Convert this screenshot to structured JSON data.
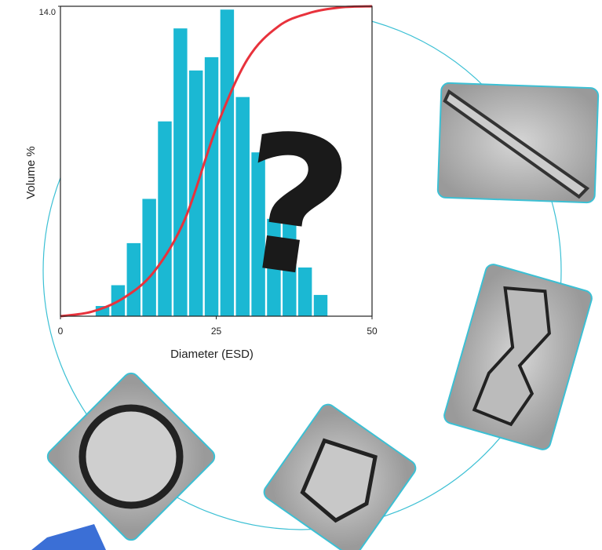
{
  "chart_data": {
    "type": "histogram",
    "x_label": "Diameter (ESD)",
    "y_label": "Volume %",
    "bins": [
      5.5,
      8,
      10.5,
      13,
      15.5,
      18,
      20.5,
      23,
      25.5,
      28,
      30.5,
      33,
      35.5,
      38,
      40.5,
      43
    ],
    "values": [
      0.46,
      1.4,
      3.3,
      5.3,
      8.8,
      13.0,
      11.1,
      11.7,
      13.85,
      9.9,
      7.4,
      4.4,
      5.4,
      2.2,
      0.96
    ],
    "color": "#1bb8d3",
    "curve": {
      "x": [
        0,
        5,
        10,
        15,
        20,
        25,
        30,
        35,
        40,
        45,
        50
      ],
      "values": [
        0,
        0.2,
        0.8,
        2.0,
        4.4,
        8.5,
        11.6,
        13.1,
        13.7,
        13.95,
        14
      ],
      "color": "#e8323c"
    },
    "xlim": [
      0,
      50
    ],
    "ylim": [
      0,
      14
    ],
    "xticks": [
      0,
      25,
      50
    ],
    "yticks": [
      {
        "value": 14,
        "label": "14.0"
      }
    ],
    "annotation": "?"
  }
}
